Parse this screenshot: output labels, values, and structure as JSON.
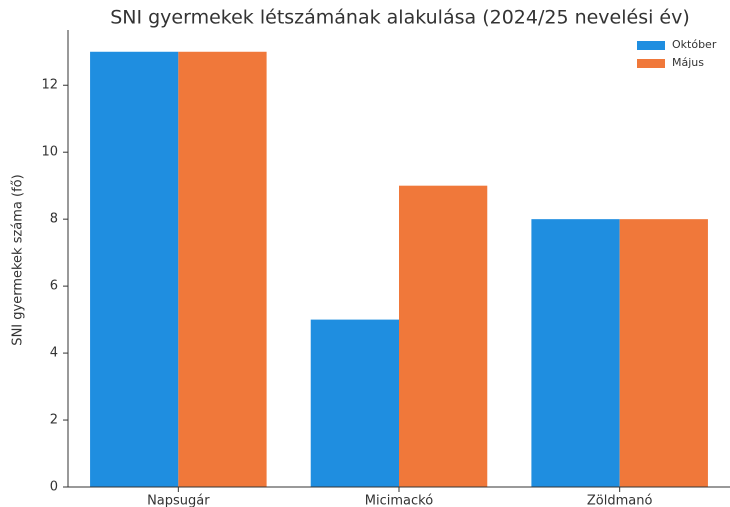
{
  "chart_data": {
    "type": "bar",
    "title": "SNI gyermekek létszámának alakulása (2024/25 nevelési év)",
    "y_label": "SNI gyermekek száma (fő)",
    "categories": [
      "Napsugár",
      "Micimackó",
      "Zöldmanó"
    ],
    "series": [
      {
        "name": "Október",
        "color": "#1f8ee0",
        "values": [
          13,
          5,
          8
        ]
      },
      {
        "name": "Május",
        "color": "#f0783a",
        "values": [
          13,
          9,
          8
        ]
      }
    ],
    "ylim": [
      0,
      13.65
    ],
    "yticks": [
      0,
      2,
      4,
      6,
      8,
      10,
      12
    ],
    "legend": "upper right"
  }
}
